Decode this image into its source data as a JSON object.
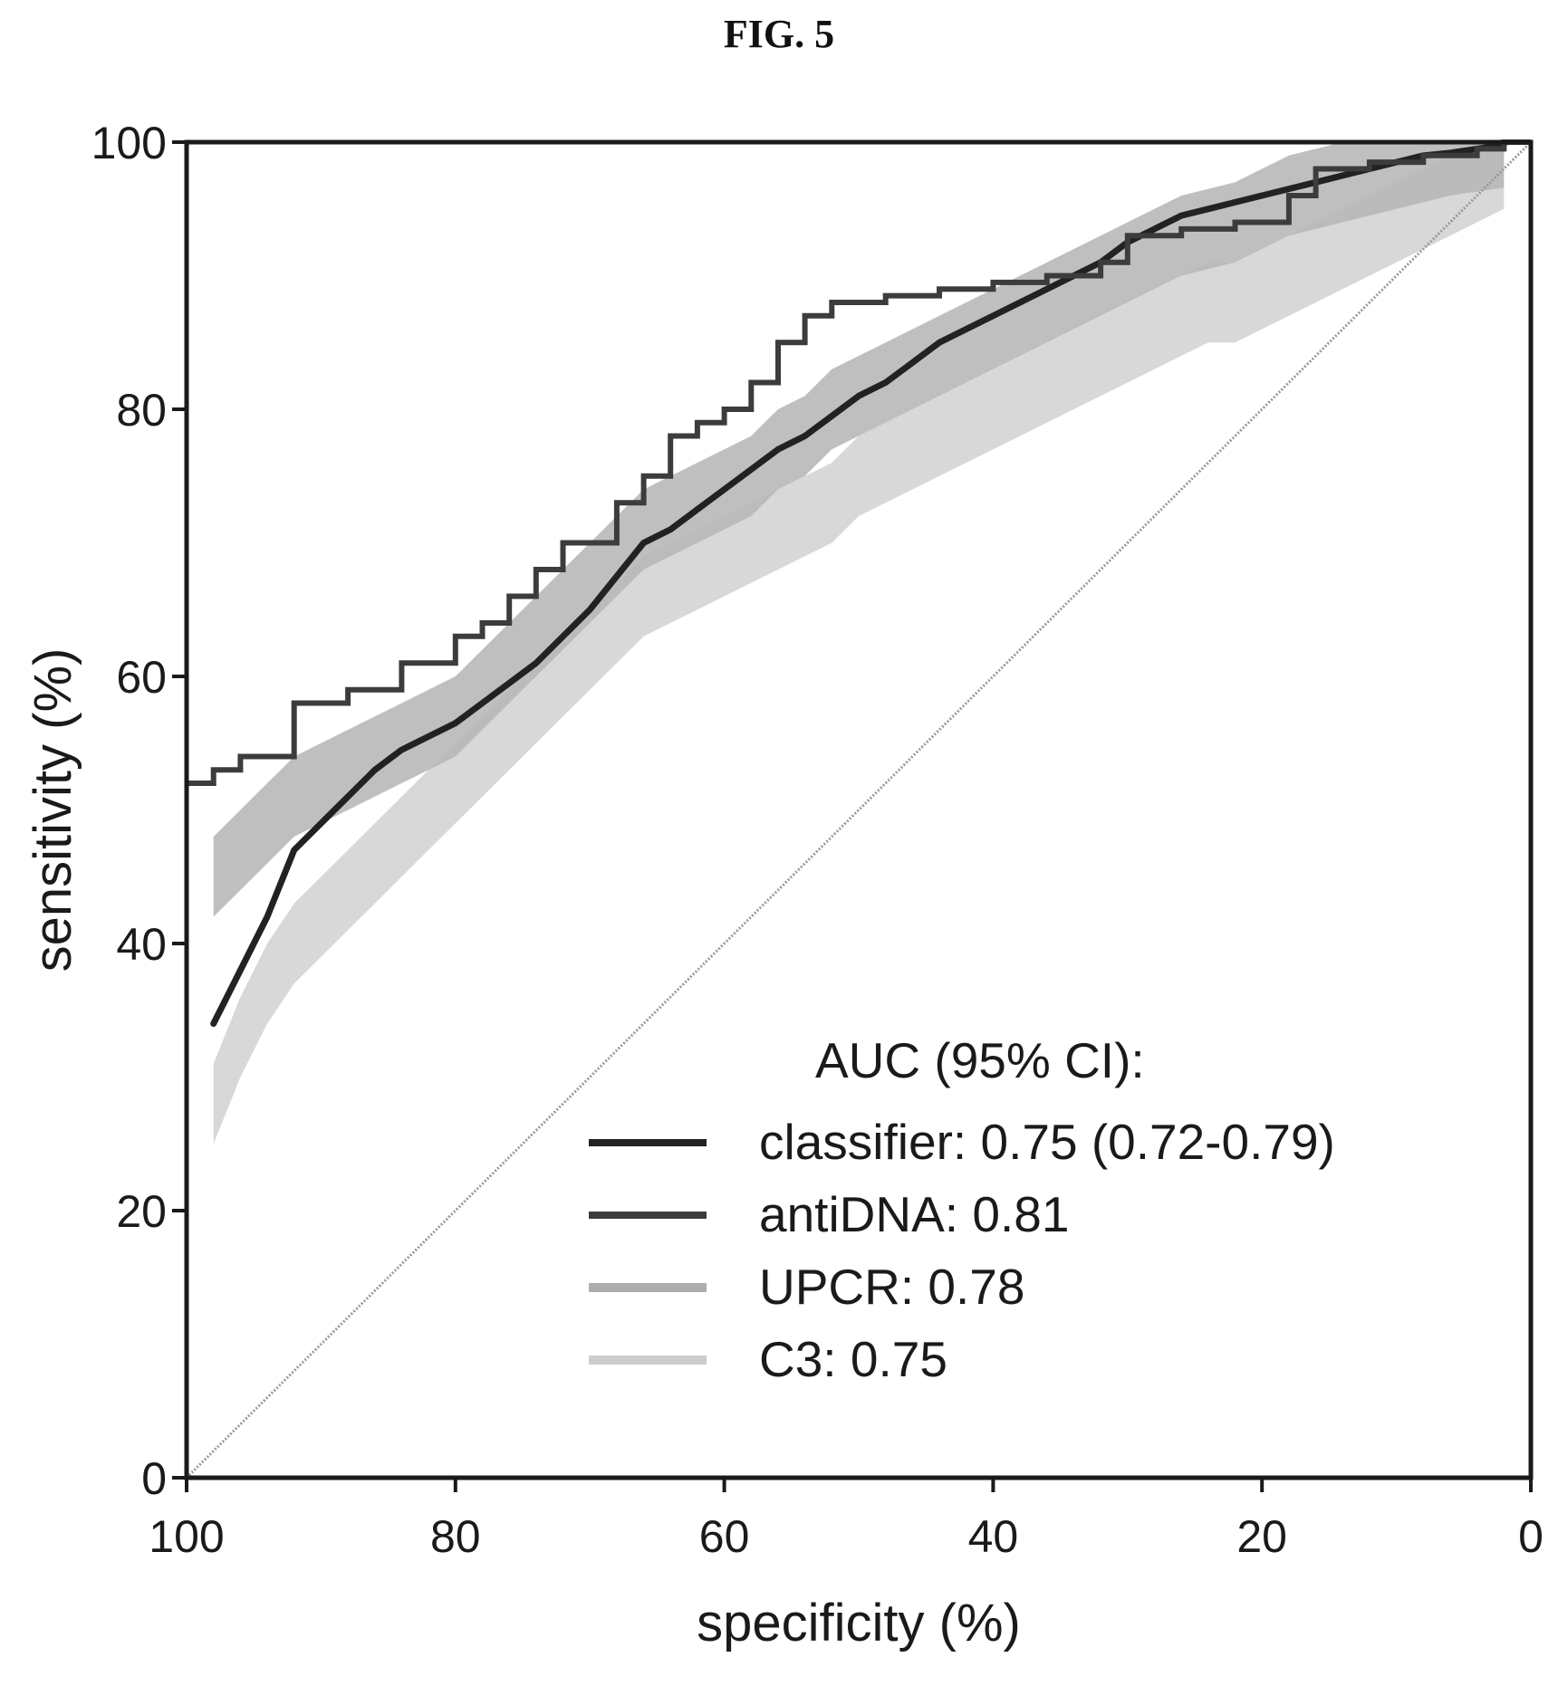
{
  "figure_title": "FIG. 5",
  "chart_data": {
    "type": "line",
    "xlabel": "specificity (%)",
    "ylabel": "sensitivity (%)",
    "xlim": [
      100,
      0
    ],
    "ylim": [
      0,
      100
    ],
    "x_reversed": true,
    "xticks": [
      100,
      80,
      60,
      40,
      20,
      0
    ],
    "yticks": [
      0,
      20,
      40,
      60,
      80,
      100
    ],
    "legend_title": "AUC (95% CI):",
    "legend_placement": "bottom-right",
    "reference_line": {
      "from": [
        100,
        0
      ],
      "to": [
        0,
        100
      ],
      "color": "#9a9a9a"
    },
    "series": [
      {
        "name": "classifier: 0.75 (0.72-0.79)",
        "style": "smooth",
        "color": "#222222",
        "width": 7,
        "x": [
          98,
          96,
          94,
          92,
          90,
          88,
          86,
          84,
          82,
          80,
          78,
          76,
          74,
          72,
          70,
          68,
          66,
          64,
          62,
          60,
          58,
          56,
          54,
          52,
          50,
          48,
          46,
          44,
          42,
          40,
          38,
          36,
          34,
          32,
          30,
          28,
          26,
          24,
          22,
          20,
          18,
          16,
          14,
          12,
          10,
          8,
          6,
          4,
          2
        ],
        "y": [
          34,
          38,
          42,
          47,
          49,
          51,
          53,
          54.5,
          55.5,
          56.5,
          58,
          59.5,
          61,
          63,
          65,
          67.5,
          70,
          71,
          72.5,
          74,
          75.5,
          77,
          78,
          79.5,
          81,
          82,
          83.5,
          85,
          86,
          87,
          88,
          89,
          90,
          91,
          92.5,
          93.5,
          94.5,
          95,
          95.5,
          96,
          96.5,
          97,
          97.5,
          98,
          98.5,
          99,
          99.2,
          99.5,
          99.8
        ]
      },
      {
        "name": "antiDNA: 0.81",
        "style": "step",
        "color": "#3c3c3c",
        "width": 6,
        "x": [
          100,
          98,
          96,
          92,
          88,
          84,
          80,
          78,
          76,
          74,
          72,
          70,
          68,
          66,
          64,
          62,
          60,
          58,
          56,
          54,
          52,
          48,
          44,
          40,
          36,
          32,
          30,
          26,
          22,
          18,
          16,
          12,
          8,
          4,
          2,
          0
        ],
        "y": [
          52,
          53,
          54,
          58,
          59,
          61,
          63,
          64,
          66,
          68,
          70,
          70,
          73,
          75,
          78,
          79,
          80,
          82,
          85,
          87,
          88,
          88.5,
          89,
          89.5,
          90,
          91,
          93,
          93.5,
          94,
          96,
          98,
          98.5,
          99,
          99.5,
          100,
          100
        ]
      },
      {
        "name": "UPCR: 0.78",
        "style": "band",
        "color": "#8a8a8a",
        "x": [
          98,
          96,
          94,
          92,
          90,
          88,
          86,
          84,
          82,
          80,
          78,
          76,
          74,
          72,
          70,
          68,
          66,
          64,
          62,
          60,
          58,
          56,
          54,
          52,
          50,
          48,
          46,
          44,
          42,
          40,
          38,
          36,
          34,
          32,
          30,
          28,
          26,
          24,
          22,
          20,
          18,
          16,
          14,
          12,
          10,
          8,
          6,
          4,
          2
        ],
        "y": [
          45,
          47,
          49,
          51,
          52,
          53,
          54,
          55,
          56,
          57,
          59,
          61,
          63,
          65,
          67,
          69,
          71,
          72,
          73,
          74,
          75,
          77,
          78,
          80,
          81,
          82,
          83,
          84,
          85,
          86,
          87,
          88,
          89,
          90,
          91,
          92,
          93,
          93.5,
          94,
          95,
          96,
          96.5,
          97,
          97.5,
          98,
          98.5,
          99,
          99.3,
          99.6
        ]
      },
      {
        "name": "C3: 0.75",
        "style": "band",
        "color": "#b8b8b8",
        "x": [
          98,
          96,
          94,
          92,
          90,
          88,
          86,
          84,
          82,
          80,
          78,
          76,
          74,
          72,
          70,
          68,
          66,
          64,
          62,
          60,
          58,
          56,
          54,
          52,
          50,
          48,
          46,
          44,
          42,
          40,
          38,
          36,
          34,
          32,
          30,
          28,
          26,
          24,
          22,
          20,
          18,
          16,
          14,
          12,
          10,
          8,
          6,
          4,
          2
        ],
        "y": [
          28,
          33,
          37,
          40,
          42,
          44,
          46,
          48,
          50,
          52,
          54,
          56,
          58,
          60,
          62,
          64,
          66,
          67,
          68,
          69,
          70,
          71,
          72,
          73,
          75,
          76,
          77,
          78,
          79,
          80,
          81,
          82,
          83,
          84,
          85,
          86,
          87,
          88,
          88,
          89,
          90,
          91,
          92,
          93,
          94,
          95,
          96,
          97,
          98
        ]
      }
    ]
  }
}
